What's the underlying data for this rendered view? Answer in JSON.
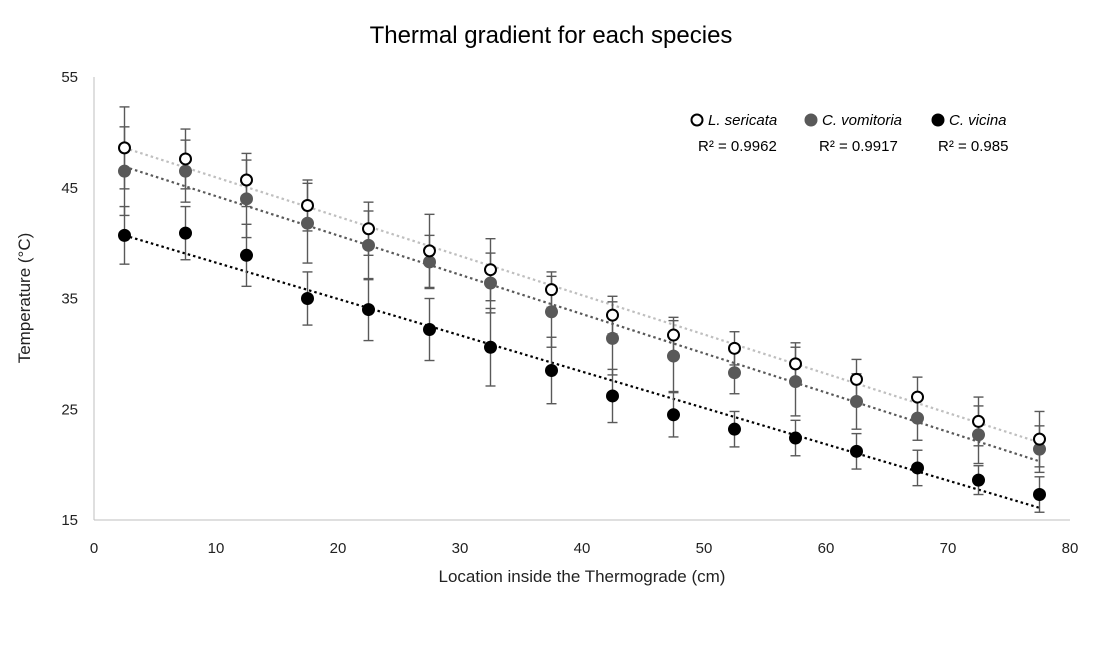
{
  "chart_data": {
    "type": "scatter",
    "title": "Thermal gradient for each species",
    "xlabel": "Location inside the Thermograde (cm)",
    "ylabel": "Temperature (°C)",
    "xlim": [
      0,
      80
    ],
    "ylim": [
      15,
      55
    ],
    "xticks": [
      0,
      10,
      20,
      30,
      40,
      50,
      60,
      70,
      80
    ],
    "yticks": [
      15,
      25,
      35,
      45,
      55
    ],
    "grid": false,
    "legend_position": "top-right",
    "x": [
      2.5,
      7.5,
      12.5,
      17.5,
      22.5,
      27.5,
      32.5,
      37.5,
      42.5,
      47.5,
      52.5,
      57.5,
      62.5,
      67.5,
      72.5,
      77.5
    ],
    "series": [
      {
        "name": "L. sericata",
        "marker": "open-circle",
        "color": "#000000",
        "trend_color": "#bfbfbf",
        "r2_label": "R² = 0.9962",
        "trend": [
          48.6,
          22.0
        ],
        "values": [
          48.6,
          47.6,
          45.7,
          43.4,
          41.3,
          39.3,
          37.6,
          35.8,
          33.5,
          31.7,
          30.5,
          29.1,
          27.7,
          26.1,
          23.9,
          22.3
        ],
        "err_hi": [
          52.3,
          50.3,
          48.1,
          45.7,
          43.7,
          42.6,
          40.4,
          37.4,
          35.2,
          33.3,
          32.0,
          31.0,
          29.5,
          27.9,
          26.1,
          24.8
        ],
        "err_lo": [
          44.9,
          44.9,
          43.3,
          41.1,
          38.9,
          36.0,
          34.8,
          34.2,
          31.8,
          30.1,
          29.0,
          27.2,
          25.9,
          24.3,
          21.7,
          19.8
        ]
      },
      {
        "name": "C. vomitoria",
        "marker": "filled-circle",
        "color": "#595959",
        "trend_color": "#595959",
        "r2_label": "R² = 0.9917",
        "trend": [
          46.9,
          20.3
        ],
        "values": [
          46.5,
          46.5,
          44.0,
          41.8,
          39.8,
          38.3,
          36.4,
          33.8,
          31.4,
          29.8,
          28.3,
          27.5,
          25.7,
          24.2,
          22.7,
          21.4
        ],
        "err_hi": [
          50.5,
          49.3,
          47.5,
          45.4,
          42.9,
          40.7,
          39.1,
          37.0,
          34.7,
          33.0,
          30.2,
          30.6,
          28.2,
          26.2,
          25.3,
          23.5
        ],
        "err_lo": [
          42.5,
          43.7,
          40.5,
          38.2,
          36.7,
          35.9,
          33.7,
          30.6,
          28.1,
          26.6,
          26.4,
          24.4,
          23.2,
          22.2,
          20.1,
          19.3
        ]
      },
      {
        "name": "C. vicina",
        "marker": "filled-circle",
        "color": "#000000",
        "trend_color": "#000000",
        "r2_label": "R² = 0.985",
        "trend": [
          40.7,
          16.1
        ],
        "values": [
          40.7,
          40.9,
          38.9,
          35.0,
          34.0,
          32.2,
          30.6,
          28.5,
          26.2,
          24.5,
          23.2,
          22.4,
          21.2,
          19.7,
          18.6,
          17.3
        ],
        "err_hi": [
          43.3,
          43.3,
          41.7,
          37.4,
          36.8,
          35.0,
          34.1,
          31.5,
          28.6,
          26.5,
          24.8,
          24.0,
          22.8,
          21.3,
          19.9,
          18.9
        ],
        "err_lo": [
          38.1,
          38.5,
          36.1,
          32.6,
          31.2,
          29.4,
          27.1,
          25.5,
          23.8,
          22.5,
          21.6,
          20.8,
          19.6,
          18.1,
          17.3,
          15.7
        ]
      }
    ]
  }
}
